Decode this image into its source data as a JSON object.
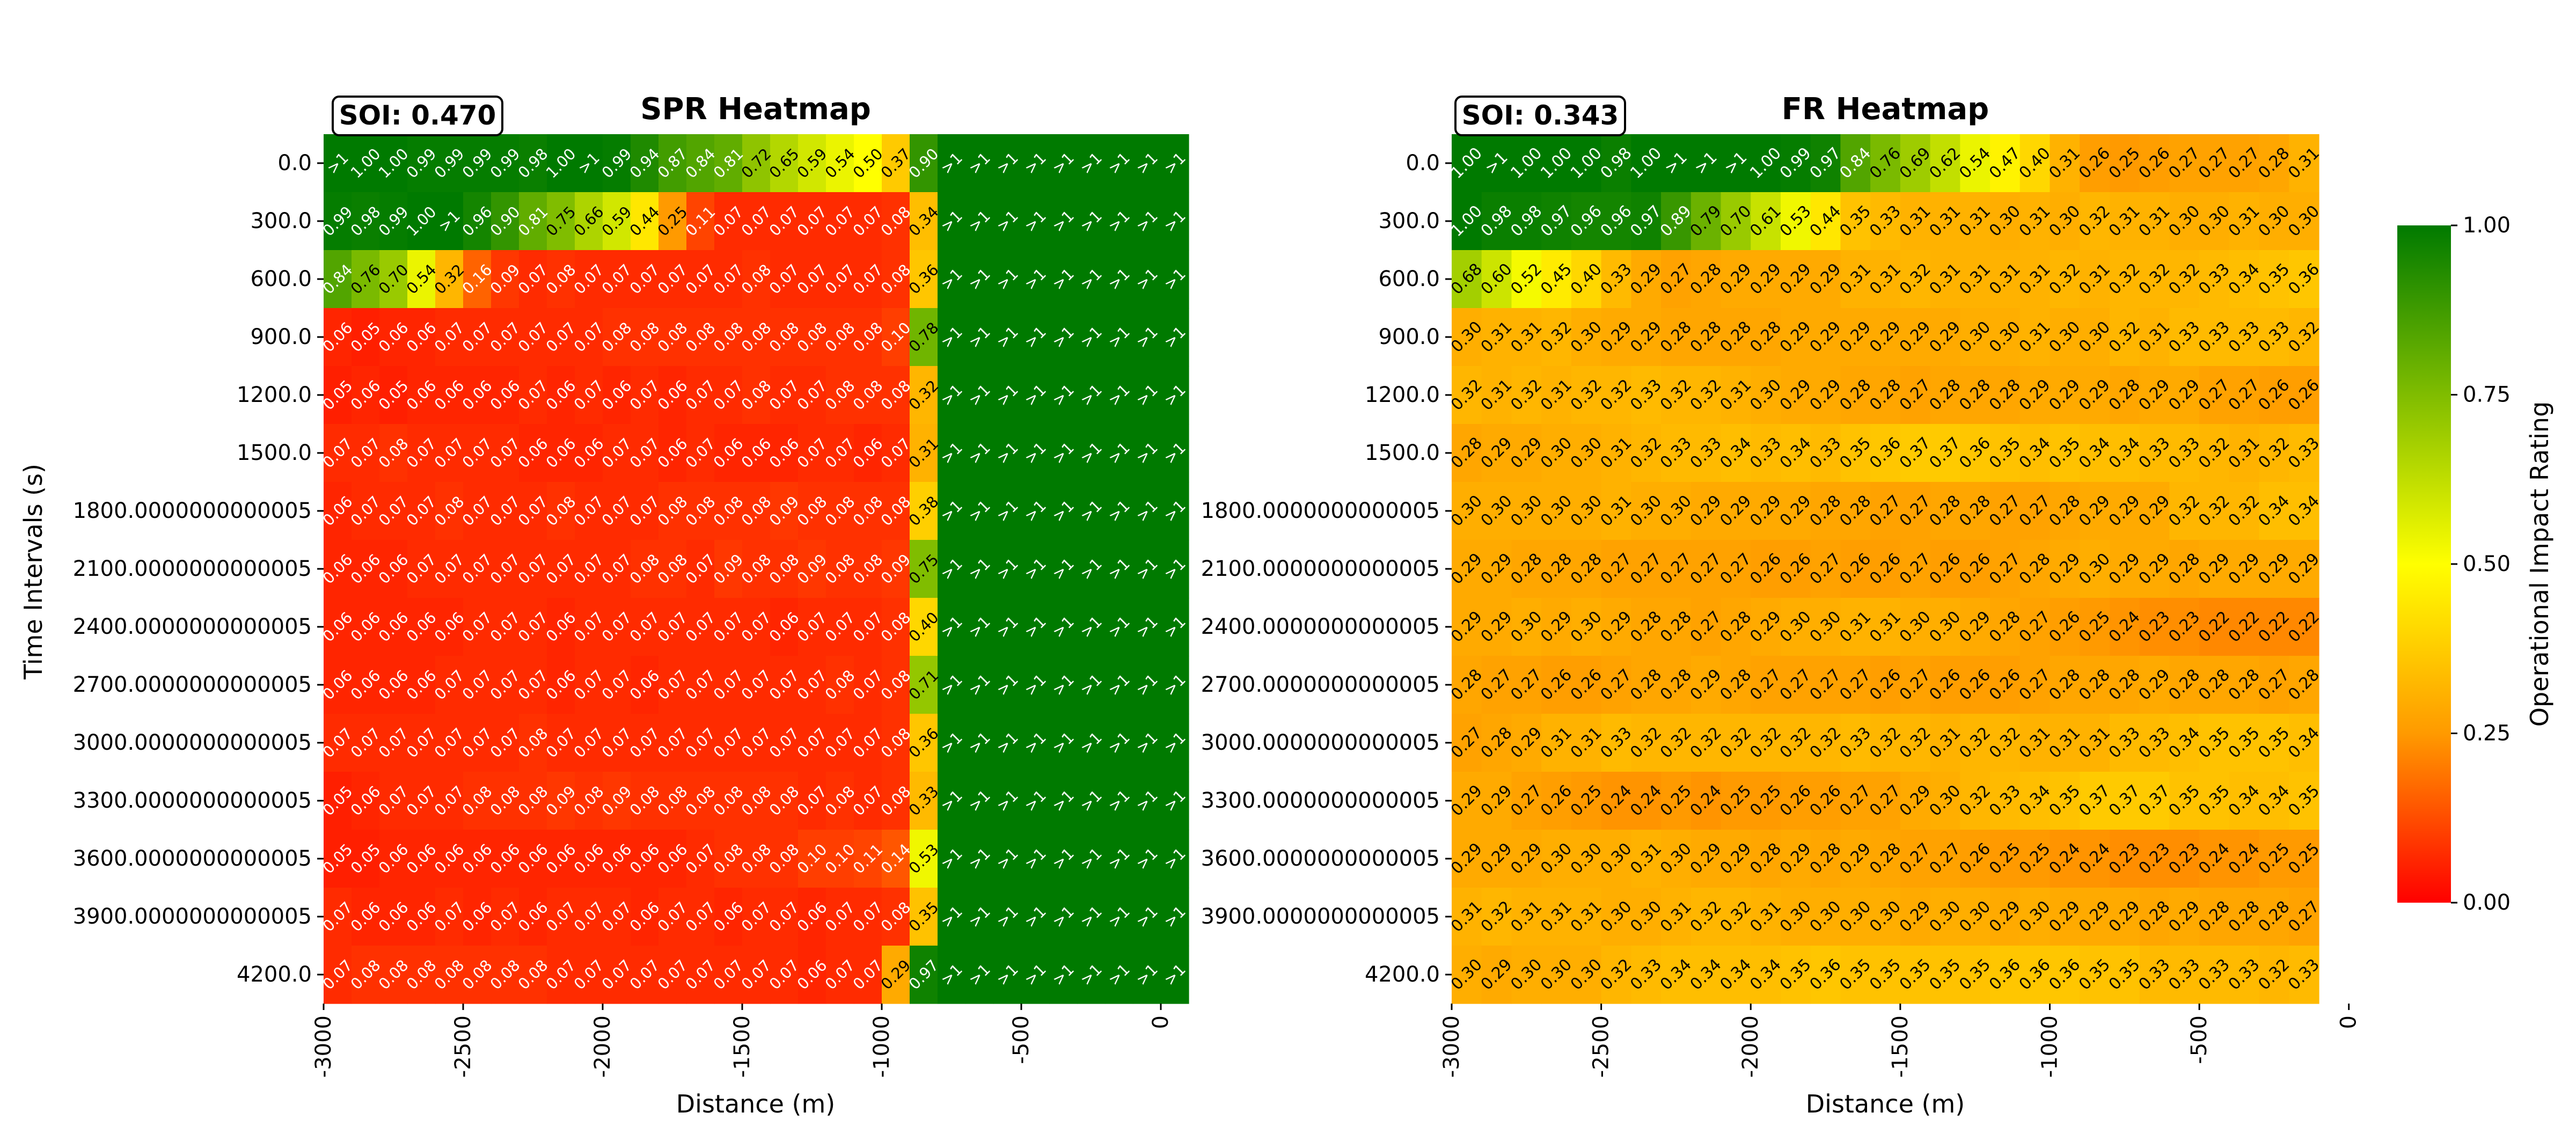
{
  "figure": {
    "ylabel": "Time Intervals (s)",
    "colorbar_label": "Operational Impact Rating",
    "colorbar_ticks": [
      "0.00",
      "0.25",
      "0.50",
      "0.75",
      "1.00"
    ],
    "colors": {
      "low": "#ff0000",
      "mid_low": "#ff9a00",
      "mid": "#ffff00",
      "high": "#007a00"
    }
  },
  "chart_data": [
    {
      "type": "heatmap",
      "title": "SPR Heatmap",
      "soi_label": "SOI: 0.470",
      "xlabel": "Distance (m)",
      "x_ticks": [
        "-3000",
        "-2500",
        "-2000",
        "-1500",
        "-1000",
        "-500",
        "0"
      ],
      "y_ticks": [
        "0.0",
        "300.0",
        "600.0",
        "900.0",
        "1200.0",
        "1500.0",
        "1800.0000000000005",
        "2100.0000000000005",
        "2400.0000000000005",
        "2700.0000000000005",
        "3000.0000000000005",
        "3300.0000000000005",
        "3600.0000000000005",
        "3900.0000000000005",
        "4200.0"
      ],
      "clim": [
        0,
        1
      ],
      "rows": [
        [
          ">1",
          "1.00",
          "1.00",
          "0.99",
          "0.99",
          "0.99",
          "0.99",
          "0.98",
          "1.00",
          ">1",
          "0.99",
          "0.94",
          "0.87",
          "0.84",
          "0.81",
          "0.72",
          "0.65",
          "0.59",
          "0.54",
          "0.50",
          "0.37",
          "0.90",
          ">1",
          ">1",
          ">1",
          ">1",
          ">1",
          ">1",
          ">1",
          ">1",
          ">1"
        ],
        [
          "0.99",
          "0.98",
          "0.99",
          "1.00",
          ">1",
          "0.96",
          "0.90",
          "0.81",
          "0.75",
          "0.66",
          "0.59",
          "0.44",
          "0.25",
          "0.11",
          "0.07",
          "0.07",
          "0.07",
          "0.07",
          "0.07",
          "0.07",
          "0.08",
          "0.34",
          ">1",
          ">1",
          ">1",
          ">1",
          ">1",
          ">1",
          ">1",
          ">1",
          ">1"
        ],
        [
          "0.84",
          "0.76",
          "0.70",
          "0.54",
          "0.32",
          "0.16",
          "0.09",
          "0.07",
          "0.08",
          "0.07",
          "0.07",
          "0.07",
          "0.07",
          "0.07",
          "0.07",
          "0.08",
          "0.07",
          "0.07",
          "0.07",
          "0.07",
          "0.08",
          "0.36",
          ">1",
          ">1",
          ">1",
          ">1",
          ">1",
          ">1",
          ">1",
          ">1",
          ">1"
        ],
        [
          "0.06",
          "0.05",
          "0.06",
          "0.06",
          "0.07",
          "0.07",
          "0.07",
          "0.07",
          "0.07",
          "0.07",
          "0.08",
          "0.08",
          "0.08",
          "0.08",
          "0.08",
          "0.08",
          "0.08",
          "0.08",
          "0.08",
          "0.08",
          "0.10",
          "0.78",
          ">1",
          ">1",
          ">1",
          ">1",
          ">1",
          ">1",
          ">1",
          ">1",
          ">1"
        ],
        [
          "0.05",
          "0.06",
          "0.05",
          "0.06",
          "0.06",
          "0.06",
          "0.06",
          "0.07",
          "0.06",
          "0.07",
          "0.06",
          "0.07",
          "0.06",
          "0.07",
          "0.07",
          "0.08",
          "0.07",
          "0.07",
          "0.08",
          "0.08",
          "0.08",
          "0.32",
          ">1",
          ">1",
          ">1",
          ">1",
          ">1",
          ">1",
          ">1",
          ">1",
          ">1"
        ],
        [
          "0.07",
          "0.07",
          "0.08",
          "0.07",
          "0.07",
          "0.07",
          "0.07",
          "0.06",
          "0.06",
          "0.06",
          "0.07",
          "0.07",
          "0.06",
          "0.07",
          "0.06",
          "0.06",
          "0.06",
          "0.07",
          "0.07",
          "0.06",
          "0.07",
          "0.31",
          ">1",
          ">1",
          ">1",
          ">1",
          ">1",
          ">1",
          ">1",
          ">1",
          ">1"
        ],
        [
          "0.06",
          "0.07",
          "0.07",
          "0.07",
          "0.08",
          "0.07",
          "0.07",
          "0.07",
          "0.08",
          "0.07",
          "0.07",
          "0.07",
          "0.08",
          "0.08",
          "0.08",
          "0.08",
          "0.09",
          "0.08",
          "0.08",
          "0.08",
          "0.08",
          "0.38",
          ">1",
          ">1",
          ">1",
          ">1",
          ">1",
          ">1",
          ">1",
          ">1",
          ">1"
        ],
        [
          "0.06",
          "0.06",
          "0.06",
          "0.07",
          "0.07",
          "0.07",
          "0.07",
          "0.07",
          "0.07",
          "0.07",
          "0.07",
          "0.08",
          "0.08",
          "0.07",
          "0.09",
          "0.08",
          "0.08",
          "0.09",
          "0.08",
          "0.08",
          "0.09",
          "0.75",
          ">1",
          ">1",
          ">1",
          ">1",
          ">1",
          ">1",
          ">1",
          ">1",
          ">1"
        ],
        [
          "0.06",
          "0.06",
          "0.06",
          "0.06",
          "0.06",
          "0.07",
          "0.07",
          "0.07",
          "0.06",
          "0.07",
          "0.07",
          "0.07",
          "0.07",
          "0.07",
          "0.07",
          "0.07",
          "0.06",
          "0.07",
          "0.07",
          "0.07",
          "0.08",
          "0.40",
          ">1",
          ">1",
          ">1",
          ">1",
          ">1",
          ">1",
          ">1",
          ">1",
          ">1"
        ],
        [
          "0.06",
          "0.06",
          "0.06",
          "0.06",
          "0.07",
          "0.07",
          "0.07",
          "0.07",
          "0.06",
          "0.07",
          "0.07",
          "0.06",
          "0.07",
          "0.07",
          "0.07",
          "0.07",
          "0.07",
          "0.07",
          "0.08",
          "0.07",
          "0.08",
          "0.71",
          ">1",
          ">1",
          ">1",
          ">1",
          ">1",
          ">1",
          ">1",
          ">1",
          ">1"
        ],
        [
          "0.07",
          "0.07",
          "0.07",
          "0.07",
          "0.07",
          "0.07",
          "0.07",
          "0.08",
          "0.07",
          "0.07",
          "0.07",
          "0.07",
          "0.07",
          "0.07",
          "0.07",
          "0.07",
          "0.07",
          "0.07",
          "0.07",
          "0.07",
          "0.08",
          "0.36",
          ">1",
          ">1",
          ">1",
          ">1",
          ">1",
          ">1",
          ">1",
          ">1",
          ">1"
        ],
        [
          "0.05",
          "0.06",
          "0.07",
          "0.07",
          "0.07",
          "0.08",
          "0.08",
          "0.08",
          "0.09",
          "0.08",
          "0.09",
          "0.08",
          "0.08",
          "0.08",
          "0.08",
          "0.08",
          "0.08",
          "0.07",
          "0.08",
          "0.07",
          "0.08",
          "0.33",
          ">1",
          ">1",
          ">1",
          ">1",
          ">1",
          ">1",
          ">1",
          ">1",
          ">1"
        ],
        [
          "0.05",
          "0.05",
          "0.06",
          "0.06",
          "0.06",
          "0.06",
          "0.06",
          "0.06",
          "0.06",
          "0.06",
          "0.06",
          "0.06",
          "0.06",
          "0.07",
          "0.08",
          "0.08",
          "0.08",
          "0.10",
          "0.10",
          "0.11",
          "0.14",
          "0.53",
          ">1",
          ">1",
          ">1",
          ">1",
          ">1",
          ">1",
          ">1",
          ">1",
          ">1"
        ],
        [
          "0.07",
          "0.06",
          "0.06",
          "0.06",
          "0.07",
          "0.06",
          "0.07",
          "0.06",
          "0.07",
          "0.07",
          "0.07",
          "0.06",
          "0.07",
          "0.07",
          "0.06",
          "0.07",
          "0.07",
          "0.06",
          "0.07",
          "0.07",
          "0.08",
          "0.35",
          ">1",
          ">1",
          ">1",
          ">1",
          ">1",
          ">1",
          ">1",
          ">1",
          ">1"
        ],
        [
          "0.07",
          "0.08",
          "0.08",
          "0.08",
          "0.08",
          "0.08",
          "0.08",
          "0.08",
          "0.07",
          "0.07",
          "0.07",
          "0.07",
          "0.07",
          "0.07",
          "0.07",
          "0.07",
          "0.07",
          "0.06",
          "0.07",
          "0.07",
          "0.29",
          "0.97",
          ">1",
          ">1",
          ">1",
          ">1",
          ">1",
          ">1",
          ">1",
          ">1",
          ">1"
        ]
      ]
    },
    {
      "type": "heatmap",
      "title": "FR Heatmap",
      "soi_label": "SOI: 0.343",
      "xlabel": "Distance (m)",
      "x_ticks": [
        "-3000",
        "-2500",
        "-2000",
        "-1500",
        "-1000",
        "-500",
        "0"
      ],
      "y_ticks": [
        "0.0",
        "300.0",
        "600.0",
        "900.0",
        "1200.0",
        "1500.0",
        "1800.0000000000005",
        "2100.0000000000005",
        "2400.0000000000005",
        "2700.0000000000005",
        "3000.0000000000005",
        "3300.0000000000005",
        "3600.0000000000005",
        "3900.0000000000005",
        "4200.0"
      ],
      "clim": [
        0,
        1
      ],
      "rows": [
        [
          "1.00",
          ">1",
          "1.00",
          "1.00",
          "1.00",
          "0.98",
          "1.00",
          ">1",
          ">1",
          ">1",
          "1.00",
          "0.99",
          "0.97",
          "0.84",
          "0.76",
          "0.69",
          "0.62",
          "0.54",
          "0.47",
          "0.40",
          "0.31",
          "0.26",
          "0.25",
          "0.26",
          "0.27",
          "0.27",
          "0.27",
          "0.28",
          "0.31"
        ],
        [
          "1.00",
          "0.98",
          "0.98",
          "0.97",
          "0.96",
          "0.96",
          "0.97",
          "0.89",
          "0.79",
          "0.70",
          "0.61",
          "0.53",
          "0.44",
          "0.35",
          "0.33",
          "0.31",
          "0.31",
          "0.31",
          "0.30",
          "0.31",
          "0.30",
          "0.32",
          "0.31",
          "0.31",
          "0.30",
          "0.30",
          "0.31",
          "0.30",
          "0.30"
        ],
        [
          "0.68",
          "0.60",
          "0.52",
          "0.45",
          "0.40",
          "0.33",
          "0.29",
          "0.27",
          "0.28",
          "0.29",
          "0.29",
          "0.29",
          "0.29",
          "0.31",
          "0.31",
          "0.32",
          "0.31",
          "0.31",
          "0.31",
          "0.31",
          "0.32",
          "0.31",
          "0.32",
          "0.32",
          "0.32",
          "0.33",
          "0.34",
          "0.35",
          "0.36"
        ],
        [
          "0.30",
          "0.31",
          "0.31",
          "0.32",
          "0.30",
          "0.29",
          "0.29",
          "0.28",
          "0.28",
          "0.28",
          "0.28",
          "0.29",
          "0.29",
          "0.29",
          "0.29",
          "0.29",
          "0.29",
          "0.30",
          "0.30",
          "0.31",
          "0.30",
          "0.30",
          "0.32",
          "0.31",
          "0.33",
          "0.33",
          "0.33",
          "0.33",
          "0.32"
        ],
        [
          "0.32",
          "0.31",
          "0.32",
          "0.31",
          "0.32",
          "0.32",
          "0.33",
          "0.32",
          "0.32",
          "0.31",
          "0.30",
          "0.29",
          "0.29",
          "0.28",
          "0.28",
          "0.27",
          "0.28",
          "0.28",
          "0.28",
          "0.29",
          "0.29",
          "0.29",
          "0.28",
          "0.29",
          "0.29",
          "0.27",
          "0.27",
          "0.26",
          "0.26"
        ],
        [
          "0.28",
          "0.29",
          "0.29",
          "0.30",
          "0.30",
          "0.31",
          "0.32",
          "0.33",
          "0.33",
          "0.34",
          "0.33",
          "0.34",
          "0.33",
          "0.35",
          "0.36",
          "0.37",
          "0.37",
          "0.36",
          "0.35",
          "0.34",
          "0.35",
          "0.34",
          "0.34",
          "0.33",
          "0.33",
          "0.32",
          "0.31",
          "0.32",
          "0.33"
        ],
        [
          "0.30",
          "0.30",
          "0.30",
          "0.30",
          "0.30",
          "0.31",
          "0.30",
          "0.30",
          "0.29",
          "0.29",
          "0.29",
          "0.29",
          "0.28",
          "0.28",
          "0.27",
          "0.27",
          "0.28",
          "0.28",
          "0.27",
          "0.27",
          "0.28",
          "0.29",
          "0.29",
          "0.29",
          "0.32",
          "0.32",
          "0.32",
          "0.34",
          "0.34"
        ],
        [
          "0.29",
          "0.29",
          "0.28",
          "0.28",
          "0.28",
          "0.27",
          "0.27",
          "0.27",
          "0.27",
          "0.27",
          "0.26",
          "0.26",
          "0.27",
          "0.26",
          "0.26",
          "0.27",
          "0.26",
          "0.26",
          "0.27",
          "0.28",
          "0.29",
          "0.30",
          "0.29",
          "0.29",
          "0.28",
          "0.29",
          "0.29",
          "0.29",
          "0.29"
        ],
        [
          "0.29",
          "0.29",
          "0.30",
          "0.29",
          "0.30",
          "0.29",
          "0.28",
          "0.28",
          "0.27",
          "0.28",
          "0.29",
          "0.30",
          "0.30",
          "0.31",
          "0.31",
          "0.30",
          "0.30",
          "0.29",
          "0.28",
          "0.27",
          "0.26",
          "0.25",
          "0.24",
          "0.23",
          "0.23",
          "0.22",
          "0.22",
          "0.22",
          "0.22"
        ],
        [
          "0.28",
          "0.27",
          "0.27",
          "0.26",
          "0.26",
          "0.27",
          "0.28",
          "0.28",
          "0.29",
          "0.28",
          "0.27",
          "0.27",
          "0.27",
          "0.27",
          "0.26",
          "0.27",
          "0.26",
          "0.26",
          "0.26",
          "0.27",
          "0.28",
          "0.28",
          "0.28",
          "0.29",
          "0.28",
          "0.28",
          "0.28",
          "0.27",
          "0.28"
        ],
        [
          "0.27",
          "0.28",
          "0.29",
          "0.31",
          "0.31",
          "0.33",
          "0.32",
          "0.32",
          "0.32",
          "0.32",
          "0.32",
          "0.32",
          "0.32",
          "0.33",
          "0.32",
          "0.32",
          "0.31",
          "0.32",
          "0.32",
          "0.31",
          "0.31",
          "0.31",
          "0.33",
          "0.33",
          "0.34",
          "0.35",
          "0.35",
          "0.35",
          "0.34"
        ],
        [
          "0.29",
          "0.29",
          "0.27",
          "0.26",
          "0.25",
          "0.24",
          "0.24",
          "0.25",
          "0.24",
          "0.25",
          "0.25",
          "0.26",
          "0.26",
          "0.27",
          "0.27",
          "0.29",
          "0.30",
          "0.32",
          "0.33",
          "0.34",
          "0.35",
          "0.37",
          "0.37",
          "0.37",
          "0.35",
          "0.35",
          "0.34",
          "0.34",
          "0.35"
        ],
        [
          "0.29",
          "0.29",
          "0.29",
          "0.30",
          "0.30",
          "0.30",
          "0.31",
          "0.30",
          "0.29",
          "0.29",
          "0.28",
          "0.29",
          "0.28",
          "0.29",
          "0.28",
          "0.27",
          "0.27",
          "0.26",
          "0.25",
          "0.25",
          "0.24",
          "0.24",
          "0.23",
          "0.23",
          "0.23",
          "0.24",
          "0.24",
          "0.25",
          "0.25"
        ],
        [
          "0.31",
          "0.32",
          "0.31",
          "0.31",
          "0.31",
          "0.30",
          "0.30",
          "0.31",
          "0.32",
          "0.32",
          "0.31",
          "0.30",
          "0.30",
          "0.30",
          "0.30",
          "0.29",
          "0.30",
          "0.30",
          "0.29",
          "0.30",
          "0.29",
          "0.29",
          "0.29",
          "0.28",
          "0.29",
          "0.28",
          "0.28",
          "0.28",
          "0.27"
        ],
        [
          "0.30",
          "0.29",
          "0.30",
          "0.30",
          "0.30",
          "0.32",
          "0.33",
          "0.34",
          "0.34",
          "0.34",
          "0.34",
          "0.35",
          "0.36",
          "0.35",
          "0.35",
          "0.35",
          "0.35",
          "0.35",
          "0.36",
          "0.36",
          "0.36",
          "0.35",
          "0.35",
          "0.33",
          "0.33",
          "0.33",
          "0.33",
          "0.32",
          "0.33"
        ]
      ]
    }
  ]
}
